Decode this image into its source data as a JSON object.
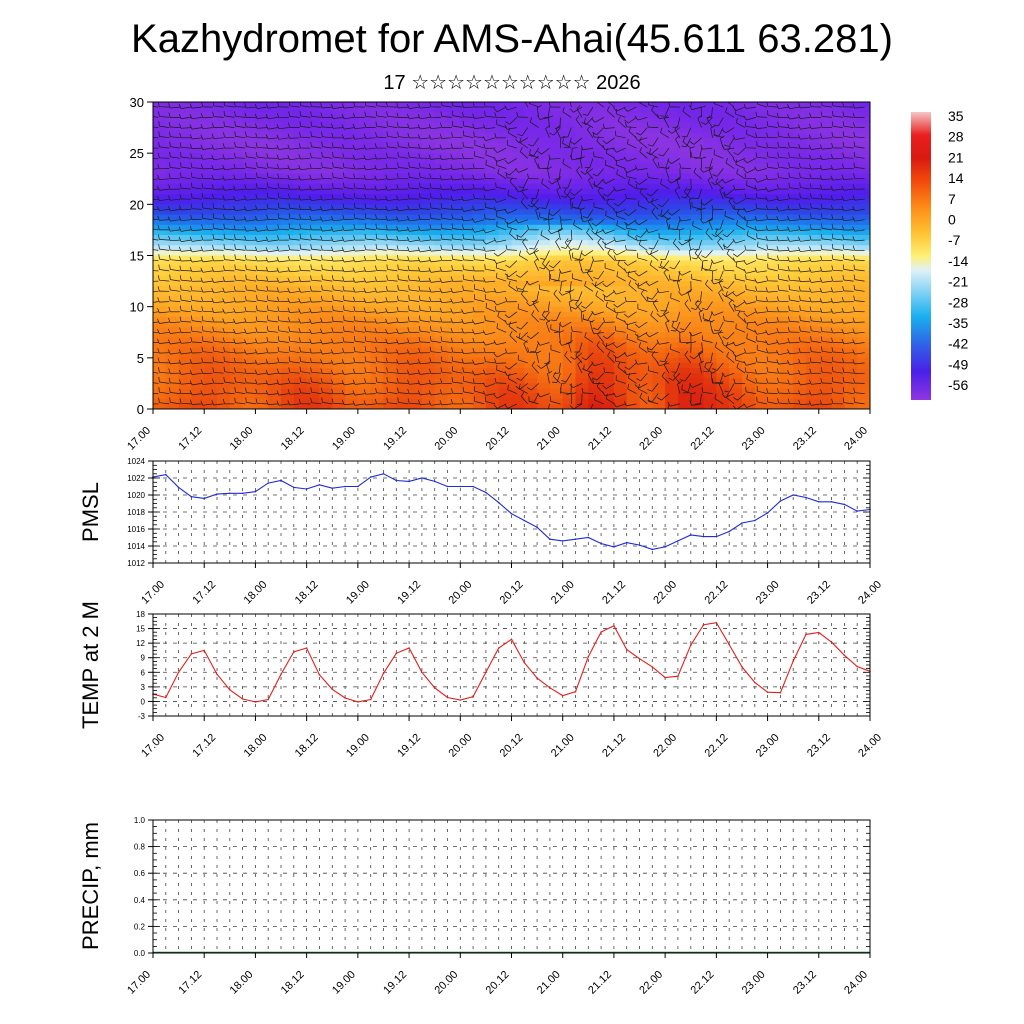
{
  "title": "Kazhydromet for AMS-Ahai(45.611 63.281)",
  "subtitle": "17 ☆☆☆☆☆☆☆☆☆☆ 2026",
  "time_labels": [
    "17.00",
    "17.12",
    "18.00",
    "18.12",
    "19.00",
    "19.12",
    "20.00",
    "20.12",
    "21.00",
    "21.12",
    "22.00",
    "22.12",
    "23.00",
    "23.12",
    "24.00"
  ],
  "chart_data": [
    {
      "type": "heatmap",
      "name": "temperature-wind-cross-section",
      "xlabel": "",
      "ylabel": "",
      "ylim": [
        0,
        30
      ],
      "yticks": [
        "0",
        "5",
        "10",
        "15",
        "20",
        "25",
        "30"
      ],
      "xlim_days": [
        17,
        24
      ],
      "colorbar": {
        "labels": [
          "35",
          "28",
          "21",
          "14",
          "7",
          "0",
          "-7",
          "-14",
          "-21",
          "-28",
          "-35",
          "-42",
          "-49",
          "-56"
        ],
        "range": [
          -60,
          38
        ]
      },
      "profile_levels": [
        0,
        3,
        6,
        9,
        12,
        14.5,
        15.5,
        17,
        19,
        21,
        23,
        26,
        30
      ],
      "profile_temps": [
        18,
        16,
        13,
        9,
        4,
        -3,
        -16,
        -26,
        -40,
        -50,
        -57,
        -58,
        -56
      ],
      "warm_anomaly_peaks": [
        21.3,
        22.2
      ]
    },
    {
      "type": "line",
      "name": "pmsl",
      "ylabel": "PMSL",
      "ylim": [
        1012,
        1024
      ],
      "yticks": [
        "1012",
        "1014",
        "1016",
        "1018",
        "1020",
        "1022",
        "1024"
      ],
      "x_start": 17.0,
      "x_step": 0.125,
      "color": "#1f2bd6",
      "values": [
        1022.1,
        1022.4,
        1020.9,
        1019.8,
        1019.6,
        1020.1,
        1020.2,
        1020.2,
        1020.4,
        1021.4,
        1021.7,
        1020.9,
        1020.7,
        1021.2,
        1020.8,
        1021.0,
        1021.0,
        1022.1,
        1022.5,
        1021.7,
        1021.6,
        1022.0,
        1021.6,
        1021.0,
        1021.0,
        1021.0,
        1020.3,
        1019.1,
        1017.8,
        1017.0,
        1016.2,
        1014.8,
        1014.6,
        1014.8,
        1015.0,
        1014.3,
        1013.9,
        1014.4,
        1014.1,
        1013.6,
        1013.9,
        1014.6,
        1015.3,
        1015.1,
        1015.1,
        1015.7,
        1016.7,
        1017.0,
        1017.9,
        1019.3,
        1020.0,
        1019.7,
        1019.2,
        1019.2,
        1018.9,
        1018.1,
        1018.3
      ]
    },
    {
      "type": "line",
      "name": "temp-2m",
      "ylabel": "TEMP at 2 M",
      "ylim": [
        -3,
        18
      ],
      "yticks": [
        "-3",
        "0",
        "3",
        "6",
        "9",
        "12",
        "15",
        "18"
      ],
      "x_start": 17.0,
      "x_step": 0.125,
      "color": "#e0201c",
      "values": [
        1.5,
        0.8,
        6.0,
        9.8,
        10.5,
        5.6,
        2.4,
        0.5,
        -0.1,
        0.4,
        5.6,
        10.2,
        11.0,
        5.5,
        2.5,
        0.7,
        -0.1,
        0.4,
        5.8,
        9.9,
        11.0,
        6.0,
        2.8,
        0.8,
        0.3,
        1.0,
        6.0,
        11.0,
        12.8,
        8.0,
        4.8,
        2.8,
        1.2,
        2.0,
        9.2,
        14.3,
        15.6,
        10.7,
        8.8,
        7.1,
        4.9,
        5.2,
        11.6,
        15.8,
        16.2,
        11.7,
        7.1,
        3.9,
        1.9,
        1.8,
        8.3,
        13.8,
        14.2,
        12.2,
        9.5,
        7.2,
        6.2
      ]
    },
    {
      "type": "bar",
      "name": "precip",
      "ylabel": "PRECIP, mm",
      "ylim": [
        0,
        1
      ],
      "yticks": [
        "0.0",
        "0.2",
        "0.4",
        "0.6",
        "0.8",
        "1.0"
      ],
      "x_start": 17.0,
      "x_step": 0.125,
      "values": [
        0,
        0,
        0,
        0,
        0,
        0,
        0,
        0,
        0,
        0,
        0,
        0,
        0,
        0,
        0,
        0,
        0,
        0,
        0,
        0,
        0,
        0,
        0,
        0,
        0,
        0,
        0,
        0,
        0,
        0,
        0,
        0,
        0,
        0,
        0,
        0,
        0,
        0,
        0,
        0,
        0,
        0,
        0,
        0,
        0,
        0,
        0,
        0,
        0,
        0,
        0,
        0,
        0,
        0,
        0,
        0,
        0
      ]
    }
  ]
}
